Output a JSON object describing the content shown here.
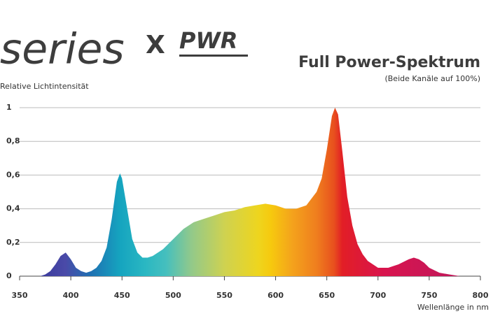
{
  "logo": {
    "name": "series",
    "mark": "X",
    "suffix": "PWR"
  },
  "chart_data": {
    "type": "area",
    "title": "Full Power-Spektrum",
    "subtitle": "(Beide Kanäle auf 100%)",
    "y_label": "Relative Lichtintensität",
    "x_label": "Wellenlänge in nm",
    "x": [
      370,
      375,
      380,
      385,
      390,
      395,
      400,
      405,
      410,
      415,
      420,
      425,
      430,
      435,
      440,
      445,
      448,
      450,
      455,
      460,
      465,
      470,
      475,
      480,
      490,
      500,
      510,
      520,
      530,
      540,
      550,
      560,
      570,
      580,
      590,
      600,
      610,
      620,
      630,
      640,
      645,
      650,
      655,
      658,
      661,
      665,
      670,
      675,
      680,
      685,
      690,
      700,
      710,
      720,
      730,
      735,
      740,
      745,
      750,
      760,
      770,
      780
    ],
    "values": [
      0,
      0.01,
      0.03,
      0.07,
      0.12,
      0.14,
      0.1,
      0.05,
      0.03,
      0.02,
      0.03,
      0.05,
      0.09,
      0.17,
      0.34,
      0.56,
      0.61,
      0.58,
      0.4,
      0.22,
      0.14,
      0.11,
      0.11,
      0.12,
      0.16,
      0.22,
      0.28,
      0.32,
      0.34,
      0.36,
      0.38,
      0.39,
      0.41,
      0.42,
      0.43,
      0.42,
      0.4,
      0.4,
      0.42,
      0.5,
      0.58,
      0.75,
      0.95,
      1,
      0.96,
      0.75,
      0.47,
      0.3,
      0.19,
      0.13,
      0.09,
      0.05,
      0.05,
      0.07,
      0.1,
      0.11,
      0.1,
      0.08,
      0.05,
      0.02,
      0.01,
      0
    ],
    "xlim": [
      350,
      800
    ],
    "xticks": [
      350,
      400,
      450,
      500,
      550,
      600,
      650,
      700,
      750,
      800
    ],
    "ylim": [
      0,
      1
    ],
    "yticks": [
      0,
      {
        "value": 0.2,
        "label": "0,2"
      },
      {
        "value": 0.4,
        "label": "0,4"
      },
      {
        "value": 0.6,
        "label": "0,6"
      },
      {
        "value": 0.8,
        "label": "0,8"
      },
      1
    ],
    "grid": true
  }
}
